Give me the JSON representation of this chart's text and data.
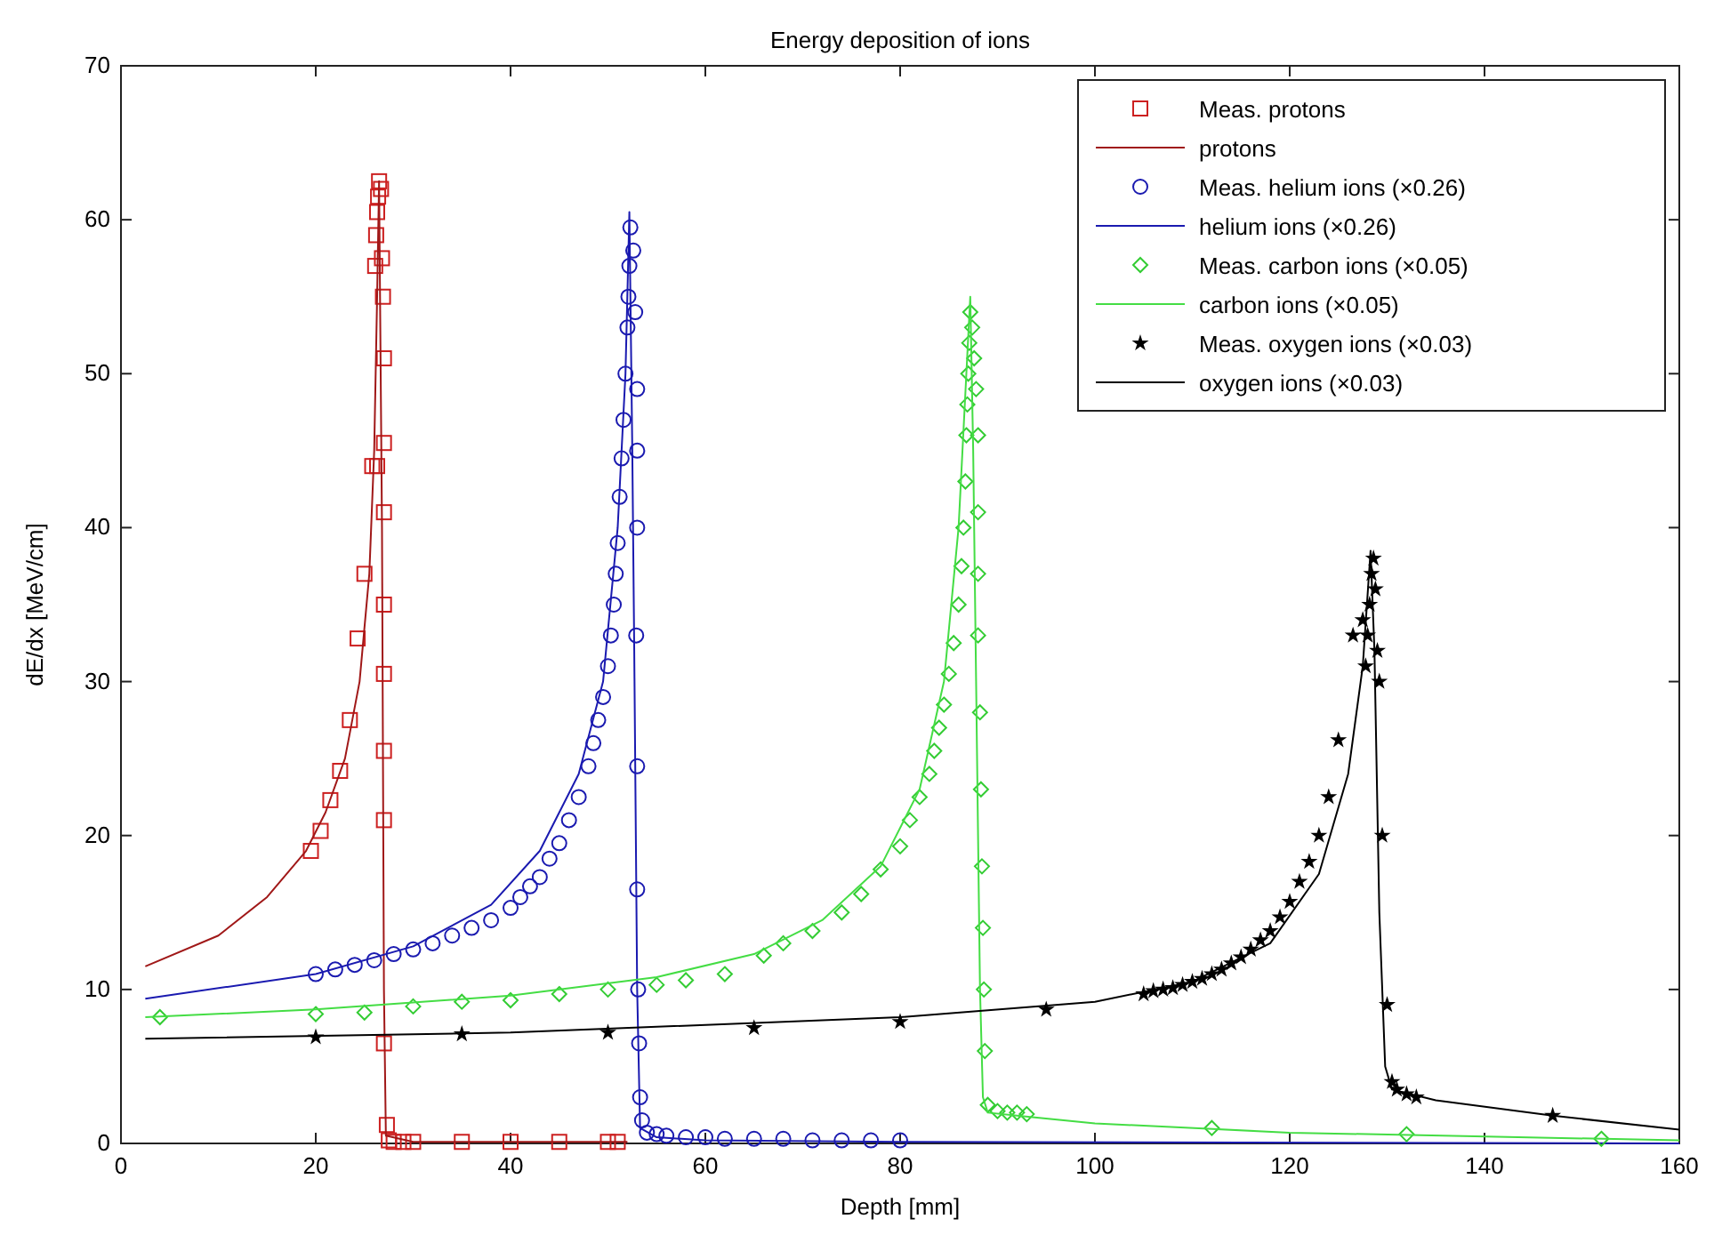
{
  "chart_data": {
    "type": "line",
    "title": "Energy deposition of ions",
    "xlabel": "Depth [mm]",
    "ylabel": "dE/dx [MeV/cm]",
    "xlim": [
      0,
      160
    ],
    "ylim": [
      0,
      70
    ],
    "xticks": [
      0,
      20,
      40,
      60,
      80,
      100,
      120,
      140,
      160
    ],
    "yticks": [
      0,
      10,
      20,
      30,
      40,
      50,
      60,
      70
    ],
    "grid": false,
    "legend": "top right",
    "series": [
      {
        "name": "Meas. protons",
        "type": "scatter",
        "marker": "square",
        "color": "#cc2020",
        "x": [
          19.5,
          20.5,
          21.5,
          22.5,
          23.5,
          24.3,
          25,
          25.8,
          26.3,
          26.1,
          26.2,
          26.3,
          26.4,
          26.5,
          26.7,
          26.8,
          26.9,
          27,
          27,
          27,
          27,
          27,
          27,
          27,
          27,
          27.3,
          27.5,
          28,
          29,
          30,
          35,
          40,
          45,
          50,
          51
        ],
        "values": [
          19,
          20.3,
          22.3,
          24.2,
          27.5,
          32.8,
          37,
          44,
          44,
          57,
          59,
          60.5,
          61.5,
          62.5,
          62,
          57.5,
          55,
          51,
          45.5,
          41,
          35,
          30.5,
          25.5,
          21,
          6.5,
          1.2,
          0.2,
          0.1,
          0.1,
          0.1,
          0.1,
          0.1,
          0.1,
          0.1,
          0.1
        ]
      },
      {
        "name": "protons",
        "marker": "none",
        "color": "#a01818",
        "x": [
          2.5,
          10,
          15,
          19,
          21,
          23,
          24.5,
          25.5,
          26,
          26.3,
          26.5,
          26.8,
          27,
          27.2,
          30,
          52
        ],
        "values": [
          11.5,
          13.5,
          16,
          19,
          21.5,
          25,
          30,
          37,
          45,
          55,
          62.5,
          40,
          10,
          0.5,
          0.1,
          0.1
        ]
      },
      {
        "name": "Meas. helium ions (×0.26)",
        "type": "scatter",
        "marker": "circle",
        "color": "#1a1ab0",
        "x": [
          20,
          22,
          24,
          26,
          28,
          30,
          32,
          34,
          36,
          38,
          40,
          41,
          42,
          43,
          44,
          45,
          46,
          47,
          48,
          48.5,
          49,
          49.5,
          50,
          50.3,
          50.6,
          50.8,
          51,
          51.2,
          51.4,
          51.6,
          51.8,
          52,
          52.1,
          52.2,
          52.3,
          52.6,
          52.8,
          53,
          53,
          53,
          52.9,
          53,
          53,
          53.1,
          53.2,
          53.3,
          53.5,
          54,
          55,
          56,
          58,
          60,
          62,
          65,
          68,
          71,
          74,
          77,
          80
        ],
        "values": [
          11,
          11.3,
          11.6,
          11.9,
          12.3,
          12.6,
          13,
          13.5,
          14,
          14.5,
          15.3,
          16,
          16.7,
          17.3,
          18.5,
          19.5,
          21,
          22.5,
          24.5,
          26,
          27.5,
          29,
          31,
          33,
          35,
          37,
          39,
          42,
          44.5,
          47,
          50,
          53,
          55,
          57,
          59.5,
          58,
          54,
          49,
          45,
          40,
          33,
          24.5,
          16.5,
          10,
          6.5,
          3,
          1.5,
          0.7,
          0.6,
          0.5,
          0.4,
          0.4,
          0.3,
          0.3,
          0.3,
          0.2,
          0.2,
          0.2,
          0.2
        ]
      },
      {
        "name": "helium ions (×0.26)",
        "marker": "none",
        "color": "#1a1ab0",
        "x": [
          2.5,
          20,
          30,
          38,
          43,
          47,
          49.5,
          51,
          51.8,
          52.2,
          52.5,
          52.7,
          53,
          53.3,
          55,
          60,
          80,
          160
        ],
        "values": [
          9.4,
          11,
          12.8,
          15.5,
          19,
          24,
          30,
          40,
          50,
          60.5,
          45,
          32,
          10,
          1,
          0.4,
          0.2,
          0.1,
          0
        ]
      },
      {
        "name": "Meas. carbon ions (×0.05)",
        "type": "scatter",
        "marker": "diamond",
        "color": "#33cc33",
        "x": [
          4,
          20,
          25,
          30,
          35,
          40,
          45,
          50,
          55,
          58,
          62,
          66,
          68,
          71,
          74,
          76,
          78,
          80,
          81,
          82,
          83,
          83.5,
          84,
          84.5,
          85,
          85.5,
          86,
          86.3,
          86.5,
          86.7,
          86.8,
          86.9,
          87,
          87.1,
          87.2,
          87.4,
          87.6,
          87.8,
          88,
          88,
          88,
          88,
          88.2,
          88.3,
          88.4,
          88.5,
          88.6,
          88.7,
          89,
          90,
          91,
          92,
          93,
          112,
          132,
          152
        ],
        "values": [
          8.2,
          8.4,
          8.5,
          8.9,
          9.2,
          9.3,
          9.7,
          10,
          10.3,
          10.6,
          11,
          12.2,
          13,
          13.8,
          15,
          16.2,
          17.8,
          19.3,
          21,
          22.5,
          24,
          25.5,
          27,
          28.5,
          30.5,
          32.5,
          35,
          37.5,
          40,
          43,
          46,
          48,
          50,
          52,
          54,
          53,
          51,
          49,
          46,
          41,
          37,
          33,
          28,
          23,
          18,
          14,
          10,
          6,
          2.5,
          2.1,
          2,
          2,
          1.9,
          1,
          0.6,
          0.3
        ]
      },
      {
        "name": "carbon ions (×0.05)",
        "marker": "none",
        "color": "#44dd44",
        "x": [
          2.5,
          20,
          40,
          55,
          65,
          72,
          78,
          82,
          84.5,
          86,
          86.8,
          87.2,
          87.5,
          87.8,
          88.2,
          88.5,
          89,
          92,
          100,
          120,
          160
        ],
        "values": [
          8.2,
          8.7,
          9.6,
          10.8,
          12.3,
          14.5,
          18,
          23,
          30,
          40,
          50,
          55,
          45,
          30,
          10,
          3,
          2,
          1.8,
          1.3,
          0.7,
          0.2
        ]
      },
      {
        "name": "Meas. oxygen ions (×0.03)",
        "type": "scatter",
        "marker": "star",
        "color": "#000000",
        "x": [
          20,
          35,
          50,
          65,
          80,
          95,
          105,
          106,
          107,
          108,
          109,
          110,
          111,
          112,
          113,
          114,
          115,
          116,
          117,
          118,
          119,
          120,
          121,
          122,
          123,
          124,
          125,
          126.5,
          127.5,
          127.8,
          128,
          128.2,
          128.4,
          128.6,
          128.8,
          129,
          129.2,
          129.5,
          130,
          130.5,
          131,
          132,
          133,
          147
        ],
        "values": [
          6.9,
          7.1,
          7.2,
          7.5,
          7.9,
          8.7,
          9.7,
          9.9,
          10,
          10.1,
          10.3,
          10.5,
          10.7,
          11,
          11.3,
          11.7,
          12.1,
          12.6,
          13.2,
          13.8,
          14.7,
          15.7,
          17,
          18.3,
          20,
          22.5,
          26.2,
          33,
          34,
          31,
          33,
          35,
          37,
          38,
          36,
          32,
          30,
          20,
          9,
          4,
          3.5,
          3.2,
          3,
          1.8
        ]
      },
      {
        "name": "oxygen ions (×0.03)",
        "marker": "none",
        "color": "#000000",
        "x": [
          2.5,
          40,
          80,
          100,
          110,
          118,
          123,
          126,
          127.5,
          128.3,
          128.7,
          129.2,
          129.8,
          130.5,
          135,
          147,
          160
        ],
        "values": [
          6.8,
          7.2,
          8.2,
          9.2,
          10.5,
          13,
          17.5,
          24,
          31,
          38.5,
          32,
          15,
          5,
          3.5,
          2.8,
          1.8,
          0.9
        ]
      }
    ]
  }
}
